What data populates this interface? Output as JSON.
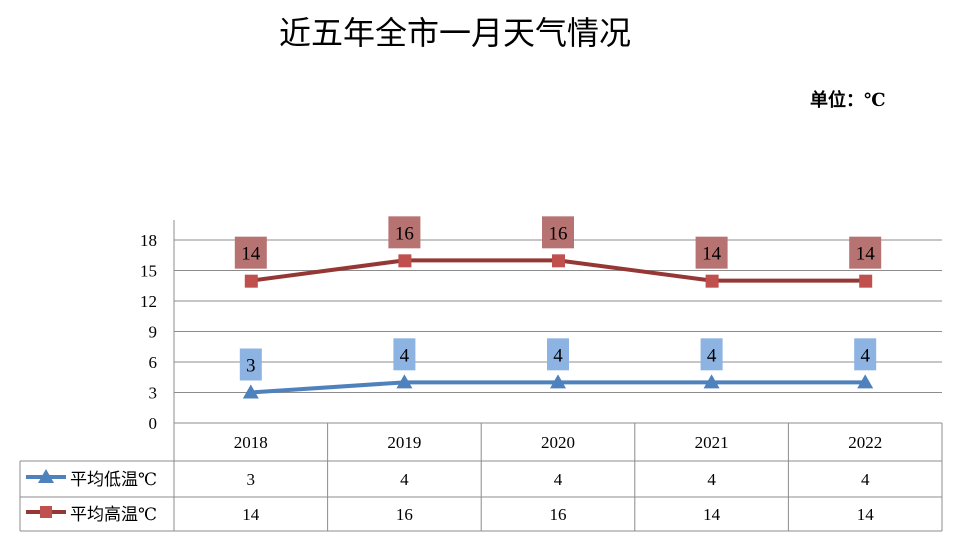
{
  "chart_data": {
    "type": "line",
    "title": "近五年全市一月天气情况",
    "unit_label": "单位：℃",
    "categories": [
      "2018",
      "2019",
      "2020",
      "2021",
      "2022"
    ],
    "ylim": [
      0,
      18
    ],
    "yticks": [
      0,
      3,
      6,
      9,
      12,
      15,
      18
    ],
    "grid": true,
    "data_table": true,
    "legend_placement": "data-table-left",
    "series": [
      {
        "name": "平均低温℃",
        "values": [
          3,
          4,
          4,
          4,
          4
        ],
        "color": "#4f81bd",
        "label_bg": "#8db3e2",
        "marker": "triangle"
      },
      {
        "name": "平均高温℃",
        "values": [
          14,
          16,
          16,
          14,
          14
        ],
        "color": "#953735",
        "marker_color": "#c0504d",
        "label_bg": "#b77372",
        "marker": "square"
      }
    ]
  }
}
